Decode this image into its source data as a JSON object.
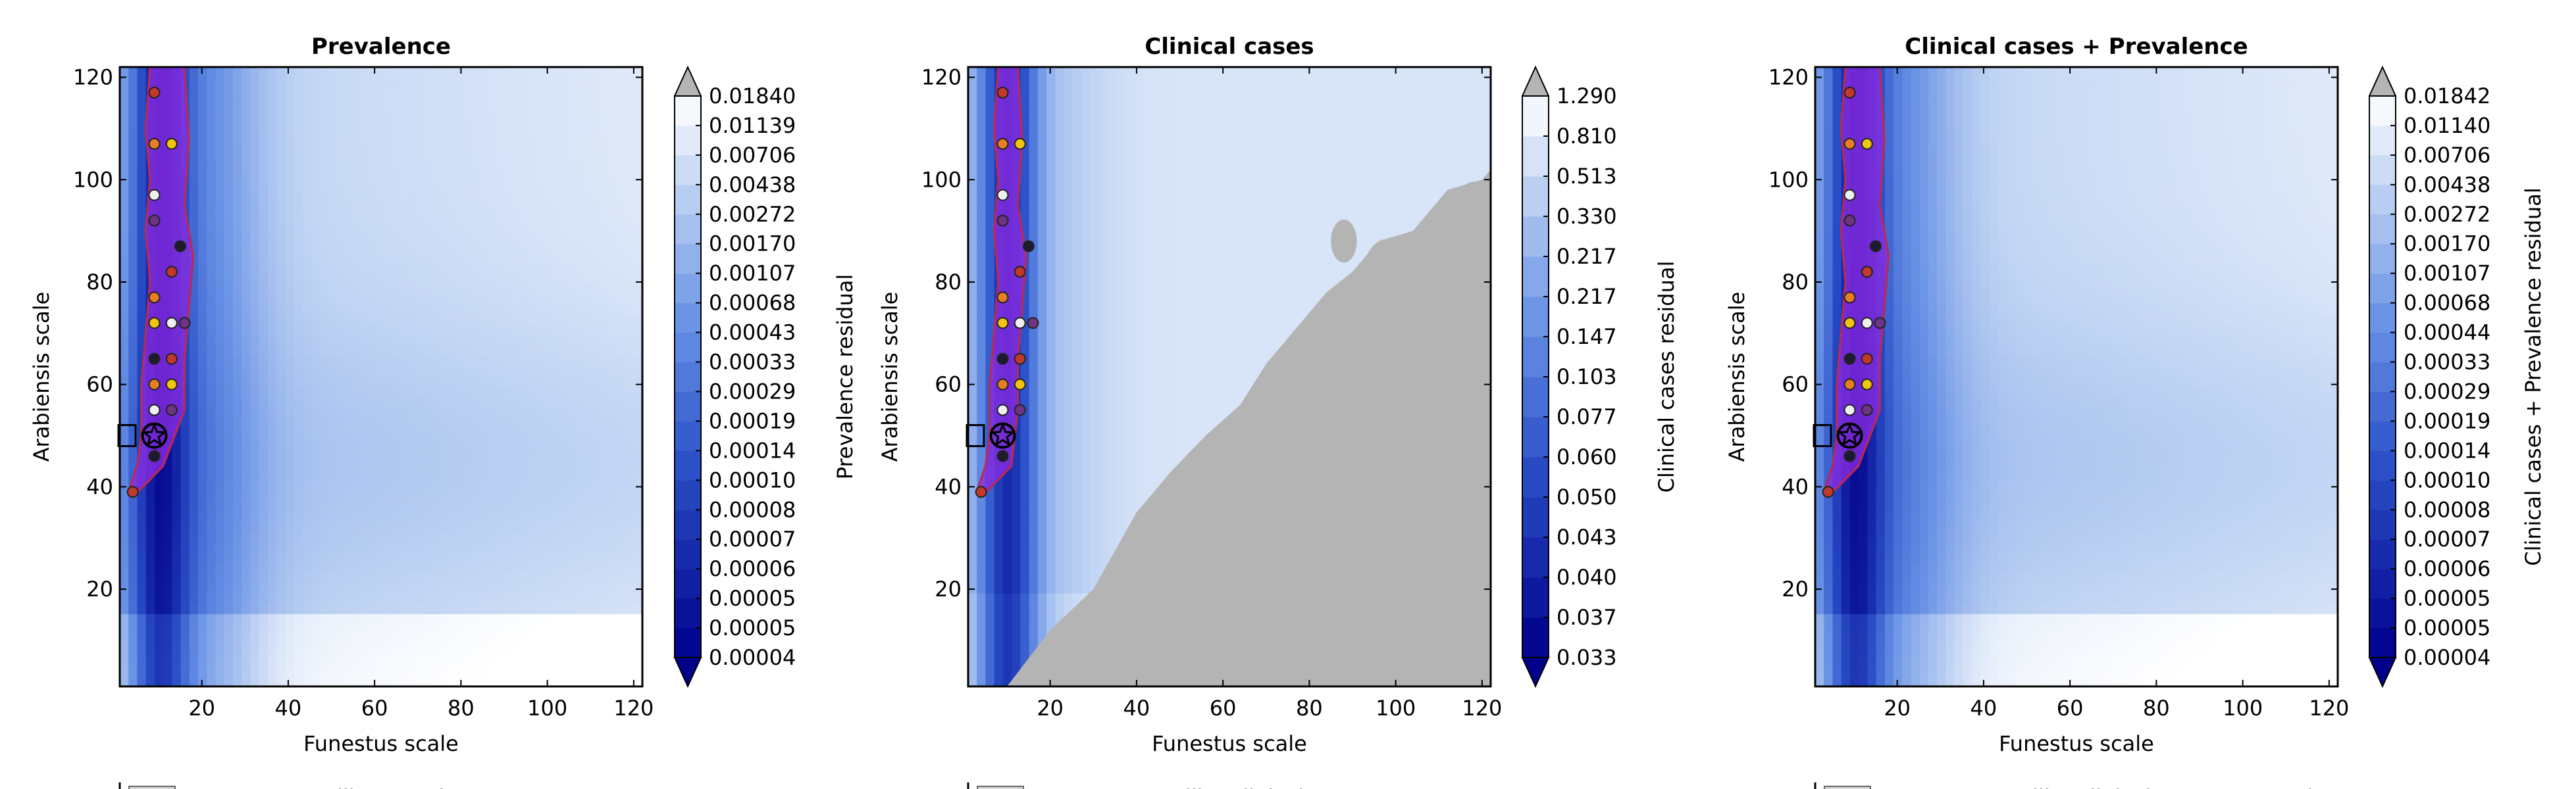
{
  "chart_data": [
    {
      "type": "contour",
      "title": "Prevalence",
      "xlabel": "Funestus scale",
      "ylabel": "Arabiensis scale",
      "xlim": [
        1,
        122
      ],
      "ylim": [
        1,
        122
      ],
      "xticks": [
        20,
        40,
        60,
        80,
        100,
        120
      ],
      "yticks": [
        20,
        40,
        60,
        80,
        100,
        120
      ],
      "grid": false,
      "colorbar": {
        "label": "Prevalence residual",
        "levels": [
          "0.00004",
          "0.00005",
          "0.00005",
          "0.00006",
          "0.00007",
          "0.00008",
          "0.00010",
          "0.00014",
          "0.00019",
          "0.00029",
          "0.00033",
          "0.00043",
          "0.00068",
          "0.00107",
          "0.00170",
          "0.00272",
          "0.00438",
          "0.00706",
          "0.01139",
          "0.01840"
        ],
        "extend": "both",
        "cmap": "blues",
        "over_color": "#b4b4b4",
        "under_color": "#00008b"
      },
      "highlight_region_color": "#8a2be2",
      "best_fit_marker": {
        "x": 9,
        "y": 50
      },
      "reference_box": {
        "x": 1,
        "y": 50
      },
      "points": [
        {
          "x": 9,
          "y": 117
        },
        {
          "x": 9,
          "y": 107
        },
        {
          "x": 13,
          "y": 107
        },
        {
          "x": 9,
          "y": 97
        },
        {
          "x": 9,
          "y": 92
        },
        {
          "x": 15,
          "y": 87
        },
        {
          "x": 13,
          "y": 82
        },
        {
          "x": 9,
          "y": 77
        },
        {
          "x": 9,
          "y": 72
        },
        {
          "x": 13,
          "y": 72
        },
        {
          "x": 16,
          "y": 72
        },
        {
          "x": 9,
          "y": 65
        },
        {
          "x": 13,
          "y": 65
        },
        {
          "x": 9,
          "y": 60
        },
        {
          "x": 13,
          "y": 60
        },
        {
          "x": 9,
          "y": 55
        },
        {
          "x": 13,
          "y": 55
        },
        {
          "x": 9,
          "y": 46
        },
        {
          "x": 4,
          "y": 39
        }
      ],
      "legend_partial": "Cut Funestus-like Prevalence"
    },
    {
      "type": "contour",
      "title": "Clinical cases",
      "xlabel": "Funestus scale",
      "ylabel": "Arabiensis scale",
      "xlim": [
        1,
        122
      ],
      "ylim": [
        1,
        122
      ],
      "xticks": [
        20,
        40,
        60,
        80,
        100,
        120
      ],
      "yticks": [
        20,
        40,
        60,
        80,
        100,
        120
      ],
      "grid": false,
      "colorbar": {
        "label": "Clinical cases residual",
        "levels": [
          "0.033",
          "0.037",
          "0.040",
          "0.043",
          "0.050",
          "0.060",
          "0.077",
          "0.103",
          "0.147",
          "0.217",
          "0.217",
          "0.330",
          "0.513",
          "0.810",
          "1.290"
        ],
        "extend": "both",
        "cmap": "blues",
        "over_color": "#b4b4b4",
        "under_color": "#00008b"
      },
      "highlight_region_color": "#8a2be2",
      "best_fit_marker": {
        "x": 9,
        "y": 50
      },
      "reference_box": {
        "x": 1,
        "y": 50
      },
      "points": [
        {
          "x": 9,
          "y": 117
        },
        {
          "x": 9,
          "y": 107
        },
        {
          "x": 13,
          "y": 107
        },
        {
          "x": 9,
          "y": 97
        },
        {
          "x": 9,
          "y": 92
        },
        {
          "x": 15,
          "y": 87
        },
        {
          "x": 13,
          "y": 82
        },
        {
          "x": 9,
          "y": 77
        },
        {
          "x": 9,
          "y": 72
        },
        {
          "x": 13,
          "y": 72
        },
        {
          "x": 16,
          "y": 72
        },
        {
          "x": 9,
          "y": 65
        },
        {
          "x": 13,
          "y": 65
        },
        {
          "x": 9,
          "y": 60
        },
        {
          "x": 13,
          "y": 60
        },
        {
          "x": 9,
          "y": 55
        },
        {
          "x": 13,
          "y": 55
        },
        {
          "x": 9,
          "y": 46
        },
        {
          "x": 4,
          "y": 39
        }
      ],
      "legend_partial": "Cut Funestus-like Clinical"
    },
    {
      "type": "contour",
      "title": "Clinical cases + Prevalence",
      "xlabel": "Funestus scale",
      "ylabel": "Arabiensis scale",
      "xlim": [
        1,
        122
      ],
      "ylim": [
        1,
        122
      ],
      "xticks": [
        20,
        40,
        60,
        80,
        100,
        120
      ],
      "yticks": [
        20,
        40,
        60,
        80,
        100,
        120
      ],
      "grid": false,
      "colorbar": {
        "label": "Clinical cases + Prevalence residual",
        "levels": [
          "0.00004",
          "0.00005",
          "0.00005",
          "0.00006",
          "0.00007",
          "0.00008",
          "0.00010",
          "0.00014",
          "0.00019",
          "0.00029",
          "0.00033",
          "0.00044",
          "0.00068",
          "0.00107",
          "0.00170",
          "0.00272",
          "0.00438",
          "0.00706",
          "0.01140",
          "0.01842"
        ],
        "extend": "both",
        "cmap": "blues",
        "over_color": "#b4b4b4",
        "under_color": "#00008b"
      },
      "highlight_region_color": "#8a2be2",
      "best_fit_marker": {
        "x": 9,
        "y": 50
      },
      "reference_box": {
        "x": 1,
        "y": 50
      },
      "points": [
        {
          "x": 9,
          "y": 117
        },
        {
          "x": 9,
          "y": 107
        },
        {
          "x": 13,
          "y": 107
        },
        {
          "x": 9,
          "y": 97
        },
        {
          "x": 9,
          "y": 92
        },
        {
          "x": 15,
          "y": 87
        },
        {
          "x": 13,
          "y": 82
        },
        {
          "x": 9,
          "y": 77
        },
        {
          "x": 9,
          "y": 72
        },
        {
          "x": 13,
          "y": 72
        },
        {
          "x": 16,
          "y": 72
        },
        {
          "x": 9,
          "y": 65
        },
        {
          "x": 13,
          "y": 65
        },
        {
          "x": 9,
          "y": 60
        },
        {
          "x": 13,
          "y": 60
        },
        {
          "x": 9,
          "y": 55
        },
        {
          "x": 13,
          "y": 55
        },
        {
          "x": 9,
          "y": 46
        },
        {
          "x": 4,
          "y": 39
        }
      ],
      "legend_partial": "Cut Funestus-like Clinical cases + Prevalence"
    }
  ]
}
